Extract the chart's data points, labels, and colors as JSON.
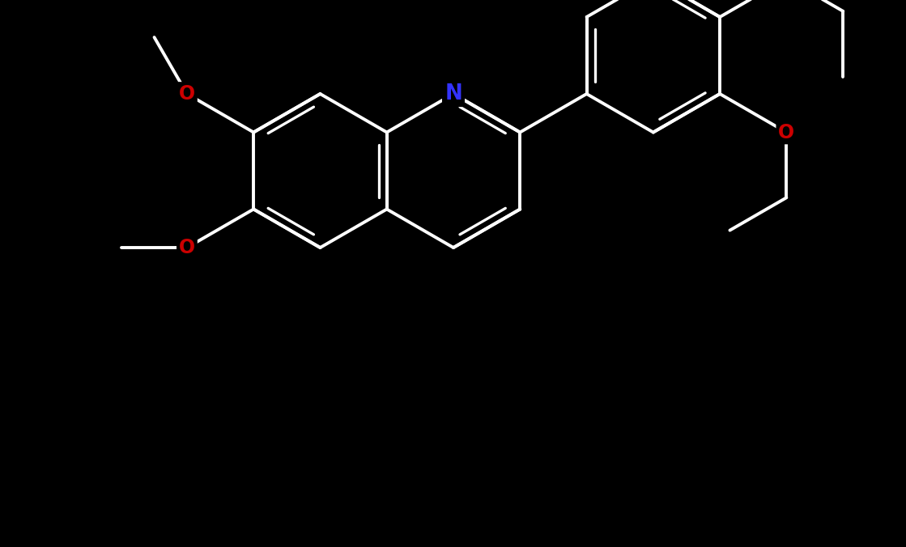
{
  "background_color": "#000000",
  "bond_color": "#ffffff",
  "N_color": "#3333ff",
  "O_color": "#cc0000",
  "line_width": 2.8,
  "font_size": 17,
  "scale": 1.0,
  "fig_width": 11.19,
  "fig_height": 6.76,
  "dpi": 100,
  "xlim": [
    0,
    11.19
  ],
  "ylim": [
    0,
    6.76
  ]
}
